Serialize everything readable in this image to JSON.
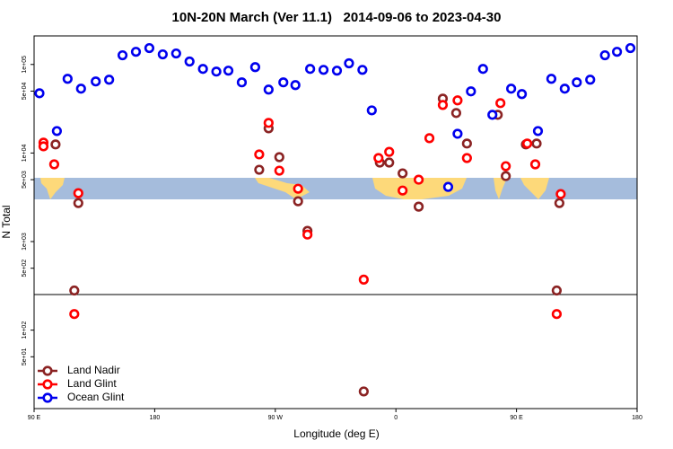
{
  "chart_data": {
    "type": "scatter",
    "title": "10N-20N March (Ver 11.1)   2014-09-06 to 2023-04-30",
    "xlabel": "Longitude (deg E)",
    "ylabel": "N Total",
    "xlim": [
      90,
      540
    ],
    "xticks": [
      {
        "value": 90,
        "label": "90 E"
      },
      180,
      {
        "value": 270,
        "label": "90 W"
      },
      {
        "value": 360,
        "label": "0"
      },
      {
        "value": 450,
        "label": "90 E"
      },
      {
        "value": 540,
        "label": "180"
      }
    ],
    "ylim": [
      13,
      210000
    ],
    "log_y": true,
    "yticks": [
      {
        "value": 100000,
        "label": "1e+05"
      },
      {
        "value": 50000,
        "label": "5e+04"
      },
      {
        "value": 10000,
        "label": "1e+04"
      },
      {
        "value": 5000,
        "label": "5e+03"
      },
      {
        "value": 1000,
        "label": "1e+03"
      },
      {
        "value": 500,
        "label": "5e+02"
      },
      {
        "value": 100,
        "label": "1e+02"
      },
      {
        "value": 50,
        "label": "5e+01"
      }
    ],
    "legend": "lower left",
    "series": [
      {
        "name": "Land Nadir",
        "color": "#8b2323",
        "x": [
          106,
          123,
          120,
          265,
          258,
          273,
          287,
          294,
          336,
          348,
          355,
          365,
          377,
          395,
          405,
          413,
          436,
          442,
          457,
          465,
          482,
          480
        ],
        "values": [
          12500,
          2720,
          280,
          19000,
          6470,
          8980,
          2850,
          1320,
          20.3,
          7800,
          7800,
          5890,
          2480,
          41100,
          28300,
          12800,
          27000,
          5490,
          12500,
          12800,
          2720,
          280
        ]
      },
      {
        "name": "Land Glint",
        "color": "#ff0000",
        "x": [
          97,
          97,
          105,
          123,
          120,
          265,
          258,
          273,
          287,
          294,
          336,
          347,
          355,
          365,
          377,
          385,
          395,
          406,
          413,
          438,
          442,
          458,
          464,
          483,
          480
        ],
        "values": [
          13100,
          11900,
          7450,
          3520,
          152,
          21900,
          9640,
          6320,
          3950,
          1200,
          372,
          8770,
          10300,
          3770,
          5000,
          14700,
          34900,
          39300,
          8770,
          36600,
          7100,
          12800,
          7450,
          3440,
          152
        ]
      },
      {
        "name": "Ocean Glint",
        "color": "#0000ee",
        "x": [
          94,
          115,
          125,
          136,
          146,
          156,
          166,
          176,
          186,
          196,
          206,
          216,
          226,
          235,
          245,
          255,
          265,
          276,
          285,
          296,
          306,
          316,
          325,
          335,
          342,
          107,
          399,
          406,
          416,
          425,
          432,
          446,
          454,
          466,
          476,
          486,
          495,
          505,
          516,
          525,
          535
        ],
        "values": [
          47300,
          68900,
          53300,
          64300,
          67300,
          127000,
          139000,
          153000,
          130000,
          133000,
          108000,
          89100,
          83100,
          85100,
          62800,
          93300,
          52000,
          62800,
          58500,
          89100,
          86900,
          85100,
          103000,
          86900,
          30300,
          17700,
          4140,
          16500,
          49700,
          89100,
          27000,
          53300,
          46300,
          17700,
          68900,
          53300,
          62800,
          67300,
          127000,
          139000,
          153000
        ]
      }
    ]
  }
}
